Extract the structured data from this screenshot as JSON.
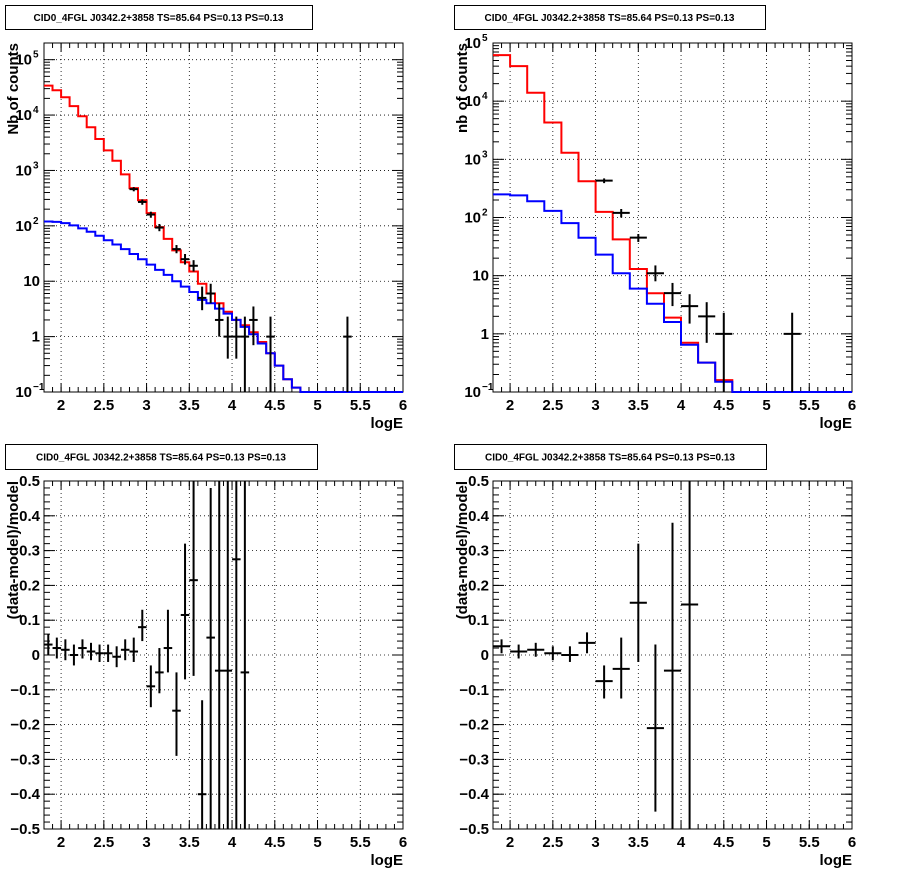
{
  "chart_data": [
    {
      "type": "step",
      "title": "CID0_4FGL J0342.2+3858 TS=85.64 PS=0.13 PS=0.13",
      "xlabel": "logE",
      "ylabel": "Nb of counts",
      "xlim": [
        1.8,
        6.0
      ],
      "ylim": [
        0.1,
        200000
      ],
      "yscale": "log",
      "grid": true,
      "x_ticks": [
        "2",
        "2.5",
        "3",
        "3.5",
        "4",
        "4.5",
        "5",
        "5.5",
        "6"
      ],
      "y_ticks": [
        {
          "v": 0.1,
          "base": "10",
          "exp": "−1"
        },
        {
          "v": 1,
          "base": "1",
          "exp": ""
        },
        {
          "v": 10,
          "base": "10",
          "exp": ""
        },
        {
          "v": 100,
          "base": "10",
          "exp": "2"
        },
        {
          "v": 1000,
          "base": "10",
          "exp": "3"
        },
        {
          "v": 10000,
          "base": "10",
          "exp": "4"
        },
        {
          "v": 100000,
          "base": "10",
          "exp": "5"
        }
      ],
      "bins": {
        "start": 1.8,
        "width": 0.1
      },
      "series": [
        {
          "color": "#ff0000",
          "style": "step",
          "values": [
            34000,
            28000,
            21000,
            14500,
            9500,
            6000,
            3700,
            2300,
            1500,
            850,
            480,
            290,
            170,
            95,
            58,
            36,
            22,
            15,
            9,
            6,
            4,
            2.8,
            2,
            1.6,
            1.2,
            0.8,
            0.5,
            0.3,
            0.17,
            0.12,
            0.08,
            0.08,
            0.08,
            0.08,
            0.08,
            0.08,
            0.08,
            0.08,
            0.08,
            0.08,
            0.08,
            0.08
          ]
        },
        {
          "color": "#0000ff",
          "style": "step",
          "values": [
            120,
            118,
            112,
            102,
            90,
            78,
            66,
            55,
            46,
            38,
            31,
            25,
            20,
            16,
            13,
            10,
            8,
            6.4,
            4.6,
            4.0,
            3.2,
            2.6,
            2.0,
            1.5,
            1.1,
            0.75,
            0.5,
            0.3,
            0.17,
            0.12,
            0.08,
            0.08,
            0.08,
            0.08,
            0.08,
            0.08,
            0.08,
            0.08,
            0.08,
            0.08,
            0.08,
            0.08
          ]
        }
      ],
      "points": [
        {
          "x": 2.85,
          "y": 460,
          "ylo": 420,
          "yhi": 500
        },
        {
          "x": 2.95,
          "y": 270,
          "ylo": 240,
          "yhi": 300
        },
        {
          "x": 3.05,
          "y": 160,
          "ylo": 140,
          "yhi": 180
        },
        {
          "x": 3.15,
          "y": 93,
          "ylo": 80,
          "yhi": 108
        },
        {
          "x": 3.35,
          "y": 38,
          "ylo": 32,
          "yhi": 45
        },
        {
          "x": 3.45,
          "y": 25,
          "ylo": 20,
          "yhi": 31
        },
        {
          "x": 3.55,
          "y": 19,
          "ylo": 15,
          "yhi": 24
        },
        {
          "x": 3.65,
          "y": 5,
          "ylo": 3,
          "yhi": 8
        },
        {
          "x": 3.75,
          "y": 6,
          "ylo": 4,
          "yhi": 9
        },
        {
          "x": 3.85,
          "y": 2,
          "ylo": 1,
          "yhi": 4
        },
        {
          "x": 3.95,
          "y": 1,
          "ylo": 0.4,
          "yhi": 2.3
        },
        {
          "x": 4.05,
          "y": 1,
          "ylo": 0.4,
          "yhi": 2.3
        },
        {
          "x": 4.15,
          "y": 1,
          "ylo": 0.1,
          "yhi": 2.3
        },
        {
          "x": 4.25,
          "y": 2,
          "ylo": 0.7,
          "yhi": 3.5
        },
        {
          "x": 4.45,
          "y": 1,
          "ylo": 0.1,
          "yhi": 2.3
        },
        {
          "x": 5.35,
          "y": 1,
          "ylo": 0.1,
          "yhi": 2.3
        }
      ],
      "x_half_width": 0.05
    },
    {
      "type": "step",
      "title": "CID0_4FGL J0342.2+3858 TS=85.64 PS=0.13 PS=0.13",
      "xlabel": "logE",
      "ylabel": "nb of counts",
      "xlim": [
        1.8,
        6.0
      ],
      "ylim": [
        0.1,
        100000
      ],
      "yscale": "log",
      "grid": true,
      "x_ticks": [
        "2",
        "2.5",
        "3",
        "3.5",
        "4",
        "4.5",
        "5",
        "5.5",
        "6"
      ],
      "y_ticks": [
        {
          "v": 0.1,
          "base": "10",
          "exp": "−1"
        },
        {
          "v": 1,
          "base": "1",
          "exp": ""
        },
        {
          "v": 10,
          "base": "10",
          "exp": ""
        },
        {
          "v": 100,
          "base": "10",
          "exp": "2"
        },
        {
          "v": 1000,
          "base": "10",
          "exp": "3"
        },
        {
          "v": 10000,
          "base": "10",
          "exp": "4"
        },
        {
          "v": 100000,
          "base": "10",
          "exp": "5"
        }
      ],
      "bins": {
        "start": 1.8,
        "width": 0.2
      },
      "series": [
        {
          "color": "#ff0000",
          "style": "step",
          "values": [
            62000,
            40000,
            14000,
            4300,
            1300,
            420,
            125,
            42,
            13,
            5,
            1.9,
            0.7,
            0.32,
            0.16,
            0.08,
            0.08,
            0.08,
            0.08,
            0.08,
            0.08,
            0.08
          ]
        },
        {
          "color": "#0000ff",
          "style": "step",
          "values": [
            250,
            240,
            190,
            130,
            80,
            45,
            23,
            11,
            6,
            3.3,
            1.6,
            0.65,
            0.32,
            0.15,
            0.08,
            0.08,
            0.08,
            0.08,
            0.08,
            0.08,
            0.08
          ]
        }
      ],
      "points": [
        {
          "x": 3.1,
          "y": 430,
          "ylo": 390,
          "yhi": 470
        },
        {
          "x": 3.3,
          "y": 120,
          "ylo": 100,
          "yhi": 140
        },
        {
          "x": 3.5,
          "y": 45,
          "ylo": 38,
          "yhi": 52
        },
        {
          "x": 3.7,
          "y": 11,
          "ylo": 8,
          "yhi": 15
        },
        {
          "x": 3.9,
          "y": 5,
          "ylo": 3,
          "yhi": 7.5
        },
        {
          "x": 4.1,
          "y": 3,
          "ylo": 1.5,
          "yhi": 4.8
        },
        {
          "x": 4.3,
          "y": 2,
          "ylo": 0.7,
          "yhi": 3.5
        },
        {
          "x": 4.5,
          "y": 1,
          "ylo": 0.1,
          "yhi": 2.3
        },
        {
          "x": 5.3,
          "y": 1,
          "ylo": 0.1,
          "yhi": 2.3
        }
      ],
      "x_half_width": 0.1
    },
    {
      "type": "scatter",
      "title": "CID0_4FGL J0342.2+3858 TS=85.64 PS=0.13 PS=0.13",
      "xlabel": "logE",
      "ylabel": "(data-model)/model",
      "xlim": [
        1.8,
        6.0
      ],
      "ylim": [
        -0.5,
        0.5
      ],
      "yscale": "linear",
      "grid": true,
      "x_ticks": [
        "2",
        "2.5",
        "3",
        "3.5",
        "4",
        "4.5",
        "5",
        "5.5",
        "6"
      ],
      "y_ticks": [
        {
          "v": -0.5,
          "base": "−0.5",
          "exp": ""
        },
        {
          "v": -0.4,
          "base": "−0.4",
          "exp": ""
        },
        {
          "v": -0.3,
          "base": "−0.3",
          "exp": ""
        },
        {
          "v": -0.2,
          "base": "−0.2",
          "exp": ""
        },
        {
          "v": -0.1,
          "base": "−0.1",
          "exp": ""
        },
        {
          "v": 0,
          "base": "0",
          "exp": ""
        },
        {
          "v": 0.1,
          "base": "0.1",
          "exp": ""
        },
        {
          "v": 0.2,
          "base": "0.2",
          "exp": ""
        },
        {
          "v": 0.3,
          "base": "0.3",
          "exp": ""
        },
        {
          "v": 0.4,
          "base": "0.4",
          "exp": ""
        },
        {
          "v": 0.5,
          "base": "0.5",
          "exp": ""
        }
      ],
      "series": [],
      "points": [
        {
          "x": 1.85,
          "y": 0.03,
          "ylo": 0.0,
          "yhi": 0.06
        },
        {
          "x": 1.95,
          "y": 0.02,
          "ylo": -0.01,
          "yhi": 0.05
        },
        {
          "x": 2.05,
          "y": 0.015,
          "ylo": -0.015,
          "yhi": 0.045
        },
        {
          "x": 2.15,
          "y": 0.0,
          "ylo": -0.03,
          "yhi": 0.03
        },
        {
          "x": 2.25,
          "y": 0.02,
          "ylo": -0.01,
          "yhi": 0.045
        },
        {
          "x": 2.35,
          "y": 0.01,
          "ylo": -0.015,
          "yhi": 0.035
        },
        {
          "x": 2.45,
          "y": 0.005,
          "ylo": -0.02,
          "yhi": 0.03
        },
        {
          "x": 2.55,
          "y": 0.005,
          "ylo": -0.02,
          "yhi": 0.03
        },
        {
          "x": 2.65,
          "y": -0.005,
          "ylo": -0.035,
          "yhi": 0.025
        },
        {
          "x": 2.75,
          "y": 0.015,
          "ylo": -0.015,
          "yhi": 0.045
        },
        {
          "x": 2.85,
          "y": 0.01,
          "ylo": -0.02,
          "yhi": 0.05
        },
        {
          "x": 2.95,
          "y": 0.08,
          "ylo": 0.04,
          "yhi": 0.13
        },
        {
          "x": 3.05,
          "y": -0.09,
          "ylo": -0.15,
          "yhi": -0.03
        },
        {
          "x": 3.15,
          "y": -0.05,
          "ylo": -0.11,
          "yhi": 0.02
        },
        {
          "x": 3.25,
          "y": 0.02,
          "ylo": -0.05,
          "yhi": 0.13
        },
        {
          "x": 3.35,
          "y": -0.16,
          "ylo": -0.29,
          "yhi": -0.05
        },
        {
          "x": 3.45,
          "y": 0.115,
          "ylo": -0.07,
          "yhi": 0.32
        },
        {
          "x": 3.55,
          "y": 0.215,
          "ylo": -0.06,
          "yhi": 0.5
        },
        {
          "x": 3.65,
          "y": -0.4,
          "ylo": -0.5,
          "yhi": -0.13
        },
        {
          "x": 3.75,
          "y": 0.05,
          "ylo": -0.5,
          "yhi": 0.48
        },
        {
          "x": 3.85,
          "y": -0.045,
          "ylo": -0.5,
          "yhi": 0.5
        },
        {
          "x": 3.95,
          "y": -0.045,
          "ylo": -0.5,
          "yhi": 0.5
        },
        {
          "x": 4.05,
          "y": 0.275,
          "ylo": -0.5,
          "yhi": 0.5
        },
        {
          "x": 4.15,
          "y": -0.05,
          "ylo": -0.5,
          "yhi": 0.5
        }
      ],
      "x_half_width": 0.05
    },
    {
      "type": "scatter",
      "title": "CID0_4FGL J0342.2+3858 TS=85.64 PS=0.13 PS=0.13",
      "xlabel": "logE",
      "ylabel": "(data-model)/model",
      "xlim": [
        1.8,
        6.0
      ],
      "ylim": [
        -0.5,
        0.5
      ],
      "yscale": "linear",
      "grid": true,
      "x_ticks": [
        "2",
        "2.5",
        "3",
        "3.5",
        "4",
        "4.5",
        "5",
        "5.5",
        "6"
      ],
      "y_ticks": [
        {
          "v": -0.5,
          "base": "−0.5",
          "exp": ""
        },
        {
          "v": -0.4,
          "base": "−0.4",
          "exp": ""
        },
        {
          "v": -0.3,
          "base": "−0.3",
          "exp": ""
        },
        {
          "v": -0.2,
          "base": "−0.2",
          "exp": ""
        },
        {
          "v": -0.1,
          "base": "−0.1",
          "exp": ""
        },
        {
          "v": 0,
          "base": "0",
          "exp": ""
        },
        {
          "v": 0.1,
          "base": "0.1",
          "exp": ""
        },
        {
          "v": 0.2,
          "base": "0.2",
          "exp": ""
        },
        {
          "v": 0.3,
          "base": "0.3",
          "exp": ""
        },
        {
          "v": 0.4,
          "base": "0.4",
          "exp": ""
        },
        {
          "v": 0.5,
          "base": "0.5",
          "exp": ""
        }
      ],
      "series": [],
      "points": [
        {
          "x": 1.9,
          "y": 0.025,
          "ylo": 0.005,
          "yhi": 0.045
        },
        {
          "x": 2.1,
          "y": 0.01,
          "ylo": -0.01,
          "yhi": 0.03
        },
        {
          "x": 2.3,
          "y": 0.015,
          "ylo": -0.005,
          "yhi": 0.035
        },
        {
          "x": 2.5,
          "y": 0.005,
          "ylo": -0.015,
          "yhi": 0.025
        },
        {
          "x": 2.7,
          "y": 0.0,
          "ylo": -0.02,
          "yhi": 0.025
        },
        {
          "x": 2.9,
          "y": 0.035,
          "ylo": 0.005,
          "yhi": 0.065
        },
        {
          "x": 3.1,
          "y": -0.075,
          "ylo": -0.125,
          "yhi": -0.03
        },
        {
          "x": 3.3,
          "y": -0.04,
          "ylo": -0.125,
          "yhi": 0.05
        },
        {
          "x": 3.5,
          "y": 0.15,
          "ylo": -0.02,
          "yhi": 0.32
        },
        {
          "x": 3.7,
          "y": -0.21,
          "ylo": -0.45,
          "yhi": 0.03
        },
        {
          "x": 3.9,
          "y": -0.045,
          "ylo": -0.5,
          "yhi": 0.38
        },
        {
          "x": 4.1,
          "y": 0.145,
          "ylo": -0.5,
          "yhi": 0.5
        }
      ],
      "x_half_width": 0.1
    }
  ]
}
